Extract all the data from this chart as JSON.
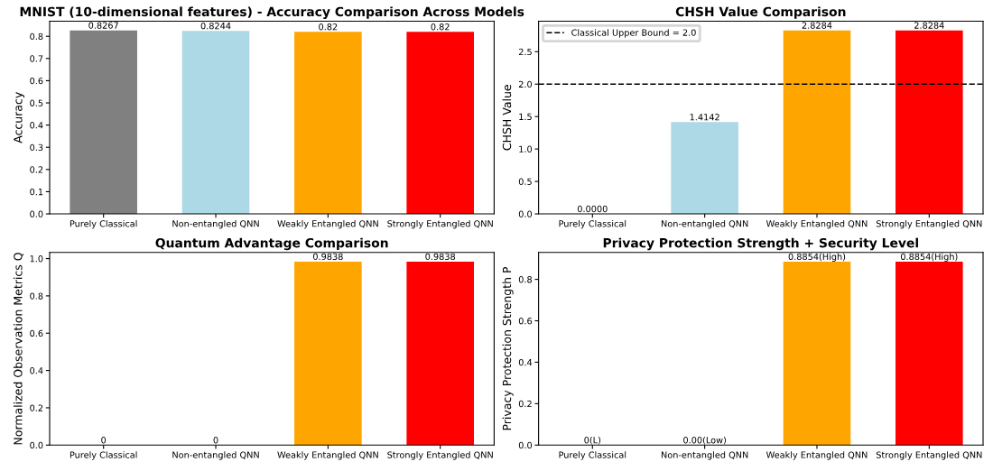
{
  "chart_data": [
    {
      "type": "bar",
      "title": "MNIST (10-dimensional features) - Accuracy Comparison Across Models",
      "ylabel": "Accuracy",
      "categories": [
        "Purely Classical",
        "Non-entangled QNN",
        "Weakly Entangled QNN",
        "Strongly Entangled QNN"
      ],
      "values": [
        0.8267,
        0.8244,
        0.82,
        0.82
      ],
      "colors": [
        "#808080",
        "#add8e6",
        "#ffa500",
        "#ff0000"
      ],
      "value_labels": [
        "0.8267",
        "0.8244",
        "0.82",
        "0.82"
      ],
      "ylim": [
        0,
        0.868
      ],
      "yticks": [
        {
          "value": 0,
          "label": "0.0"
        },
        0.1,
        0.2,
        0.3,
        0.4,
        0.5,
        0.6,
        0.7,
        0.8
      ]
    },
    {
      "type": "bar",
      "title": "CHSH Value Comparison",
      "ylabel": "CHSH Value",
      "categories": [
        "Purely Classical",
        "Non-entangled QNN",
        "Weakly Entangled QNN",
        "Strongly Entangled QNN"
      ],
      "values": [
        0.0,
        1.4142,
        2.8284,
        2.8284
      ],
      "colors": [
        "#808080",
        "#add8e6",
        "#ffa500",
        "#ff0000"
      ],
      "value_labels": [
        "0.0000",
        "1.4142",
        "2.8284",
        "2.8284"
      ],
      "ylim": [
        0,
        2.97
      ],
      "yticks": [
        {
          "value": 0,
          "label": "0.0"
        },
        0.5,
        {
          "value": 1,
          "label": "1.0"
        },
        1.5,
        {
          "value": 2,
          "label": "2.0"
        },
        2.5
      ],
      "ref_lines": [
        {
          "axis": "y",
          "value": 2.0,
          "label": "Classical Upper Bound = 2.0",
          "color": "#000000",
          "line_style": "dashed"
        }
      ],
      "legend": "top left"
    },
    {
      "type": "bar",
      "title": "Quantum Advantage Comparison",
      "ylabel": "Normalized Observation Metrics Q",
      "categories": [
        "Purely Classical",
        "Non-entangled QNN",
        "Weakly Entangled QNN",
        "Strongly Entangled QNN"
      ],
      "values": [
        0,
        0,
        0.9838,
        0.9838
      ],
      "colors": [
        "#808080",
        "#add8e6",
        "#ffa500",
        "#ff0000"
      ],
      "value_labels": [
        "0",
        "0",
        "0.9838",
        "0.9838"
      ],
      "ylim": [
        0,
        1.033
      ],
      "yticks": [
        {
          "value": 0,
          "label": "0.0"
        },
        0.2,
        0.4,
        0.6,
        0.8,
        {
          "value": 1,
          "label": "1.0"
        }
      ]
    },
    {
      "type": "bar",
      "title": "Privacy Protection Strength + Security Level",
      "ylabel": "Privacy Protection Strength P",
      "categories": [
        "Purely Classical",
        "Non-entangled QNN",
        "Weakly Entangled QNN",
        "Strongly Entangled QNN"
      ],
      "values": [
        0,
        0.0,
        0.8854,
        0.8854
      ],
      "colors": [
        "#808080",
        "#add8e6",
        "#ffa500",
        "#ff0000"
      ],
      "value_labels": [
        "0(L)",
        "0.00(Low)",
        "0.8854(High)",
        "0.8854(High)"
      ],
      "ylim": [
        0,
        0.93
      ],
      "yticks": [
        {
          "value": 0,
          "label": "0.0"
        },
        0.2,
        0.4,
        0.6,
        0.8
      ]
    }
  ]
}
